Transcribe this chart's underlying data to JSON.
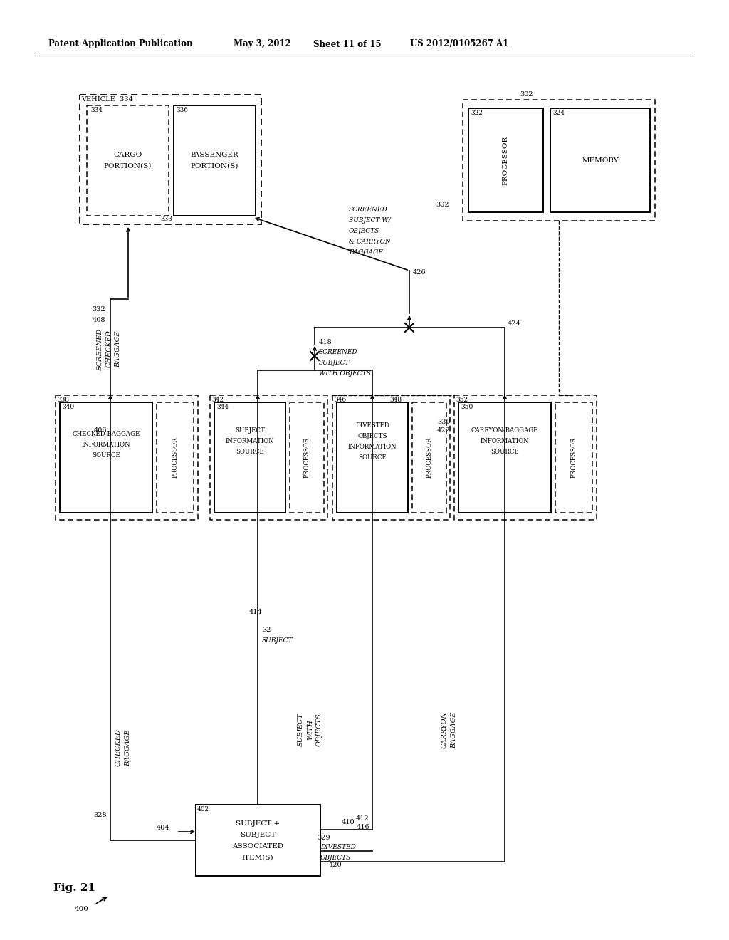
{
  "bg_color": "#ffffff",
  "header_text1": "Patent Application Publication",
  "header_text2": "May 3, 2012",
  "header_text3": "Sheet 11 of 15",
  "header_text4": "US 2012/0105267 A1"
}
